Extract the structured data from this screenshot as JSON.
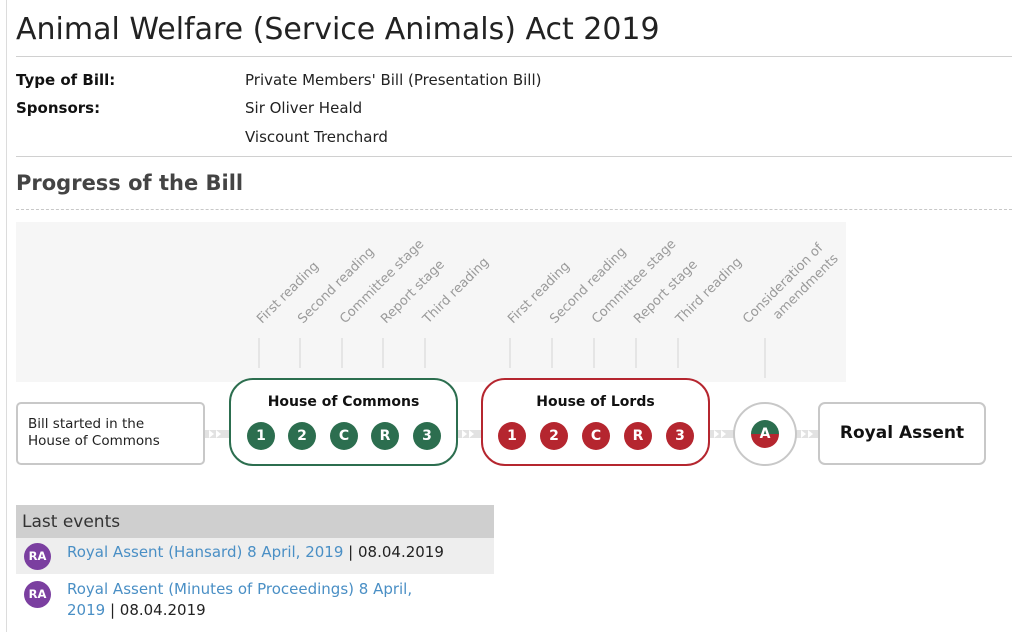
{
  "page_title": "Animal Welfare (Service Animals) Act 2019",
  "bill_meta": {
    "type_label": "Type of Bill:",
    "type_value": "Private Members' Bill (Presentation Bill)",
    "sponsors_label": "Sponsors:",
    "sponsors": [
      "Sir Oliver Heald",
      "Viscount Trenchard"
    ]
  },
  "progress": {
    "heading": "Progress of the Bill",
    "start_label_line1": "Bill started in the",
    "start_label_line2": "House of Commons",
    "commons": {
      "title": "House of Commons",
      "color": "#2c6e4f",
      "stages": [
        "First reading",
        "Second reading",
        "Committee stage",
        "Report stage",
        "Third reading"
      ],
      "dots": [
        "1",
        "2",
        "C",
        "R",
        "3"
      ]
    },
    "lords": {
      "title": "House of Lords",
      "color": "#b5262f",
      "stages": [
        "First reading",
        "Second reading",
        "Committee stage",
        "Report stage",
        "Third reading"
      ],
      "dots": [
        "1",
        "2",
        "C",
        "R",
        "3"
      ]
    },
    "amendments": {
      "label_line1": "Consideration of",
      "label_line2": "amendments",
      "dot": "A"
    },
    "royal_assent": "Royal Assent"
  },
  "last_events": {
    "heading": "Last events",
    "items": [
      {
        "badge": "RA",
        "link_text": "Royal Assent (Hansard) 8 April, 2019",
        "separator": " | ",
        "date": "08.04.2019"
      },
      {
        "badge": "RA",
        "link_line1": "Royal Assent (Minutes of Proceedings) 8 April,",
        "link_line2": "2019",
        "separator": " | ",
        "date": "08.04.2019"
      }
    ]
  }
}
